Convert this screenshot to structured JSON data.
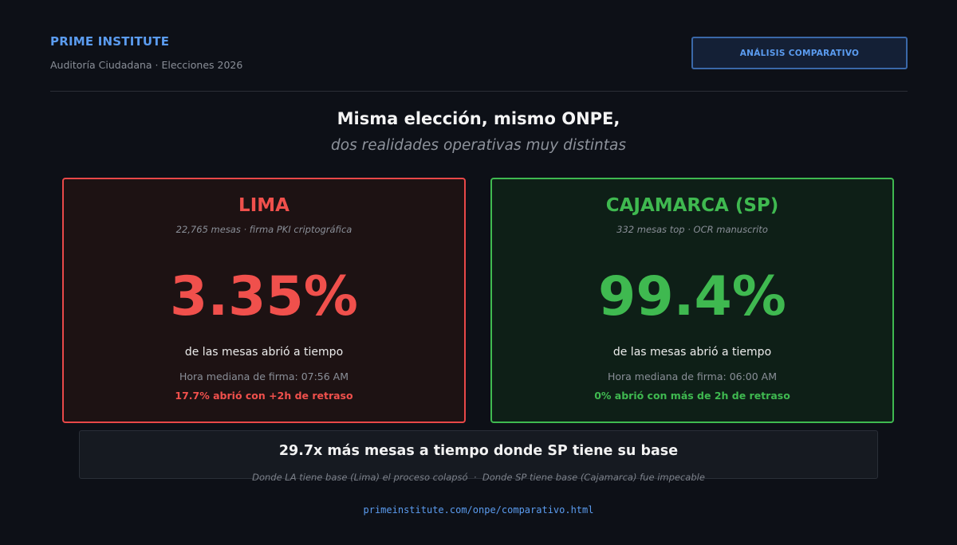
{
  "header": {
    "brand": "PRIME INSTITUTE",
    "subtitle": "Auditoría Ciudadana · Elecciones 2026",
    "button_label": "ANÁLISIS COMPARATIVO"
  },
  "headline": {
    "title": "Misma elección, mismo ONPE,",
    "subtitle": "dos realidades operativas muy distintas"
  },
  "cards": {
    "lima": {
      "title": "LIMA",
      "meta": "22,765 mesas · firma PKI criptográfica",
      "value": "3.35%",
      "description": "de las mesas abrió a tiempo",
      "median": "Hora mediana de firma: 07:56 AM",
      "delay": "17.7% abrió con +2h de retraso",
      "color": "#f0504c"
    },
    "cajamarca": {
      "title": "CAJAMARCA (SP)",
      "meta": "332 mesas top · OCR manuscrito",
      "value": "99.4%",
      "description": "de las mesas abrió a tiempo",
      "median": "Hora mediana de firma: 06:00 AM",
      "delay": "0% abrió con más de 2h de retraso",
      "color": "#3fb950"
    }
  },
  "summary": {
    "title": "29.7x más mesas a tiempo donde SP tiene su base",
    "note": "Donde LA tiene base (Lima) el proceso colapsó  ·  Donde SP tiene base (Cajamarca) fue impecable"
  },
  "footer": {
    "link": "primeinstitute.com/onpe/comparativo.html"
  }
}
